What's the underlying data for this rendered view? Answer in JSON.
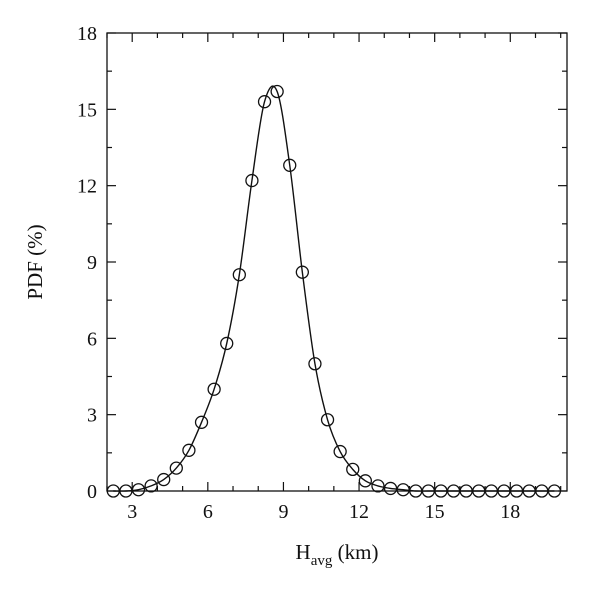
{
  "chart_data": {
    "type": "line",
    "title": "",
    "xlabel": "H",
    "xlabel_sub": "avg",
    "xlabel_unit": " (km)",
    "ylabel": "PDF (%)",
    "xlim": [
      2,
      20.25
    ],
    "ylim": [
      0,
      18
    ],
    "xticks": [
      3,
      6,
      9,
      12,
      15,
      18
    ],
    "yticks": [
      0,
      3,
      6,
      9,
      12,
      15,
      18
    ],
    "grid": false,
    "legend": "none",
    "marker": "open-circle",
    "line_color": "#111111",
    "series": [
      {
        "x": [
          2.25,
          2.75,
          3.25,
          3.75,
          4.25,
          4.75,
          5.25,
          5.75,
          6.25,
          6.75,
          7.25,
          7.75,
          8.25,
          8.75,
          9.25,
          9.75,
          10.25,
          10.75,
          11.25,
          11.75,
          12.25,
          12.75,
          13.25,
          13.75,
          14.25,
          14.75,
          15.25,
          15.75,
          16.25,
          16.75,
          17.25,
          17.75,
          18.25,
          18.75,
          19.25,
          19.75
        ],
        "y": [
          0.0,
          0.0,
          0.05,
          0.2,
          0.45,
          0.9,
          1.6,
          2.7,
          4.0,
          5.8,
          8.5,
          12.2,
          15.3,
          15.7,
          12.8,
          8.6,
          5.0,
          2.8,
          1.55,
          0.85,
          0.4,
          0.2,
          0.1,
          0.05,
          0.0,
          0.0,
          0.0,
          0.0,
          0.0,
          0.0,
          0.0,
          0.0,
          0.0,
          0.0,
          0.0,
          0.0
        ]
      }
    ]
  }
}
